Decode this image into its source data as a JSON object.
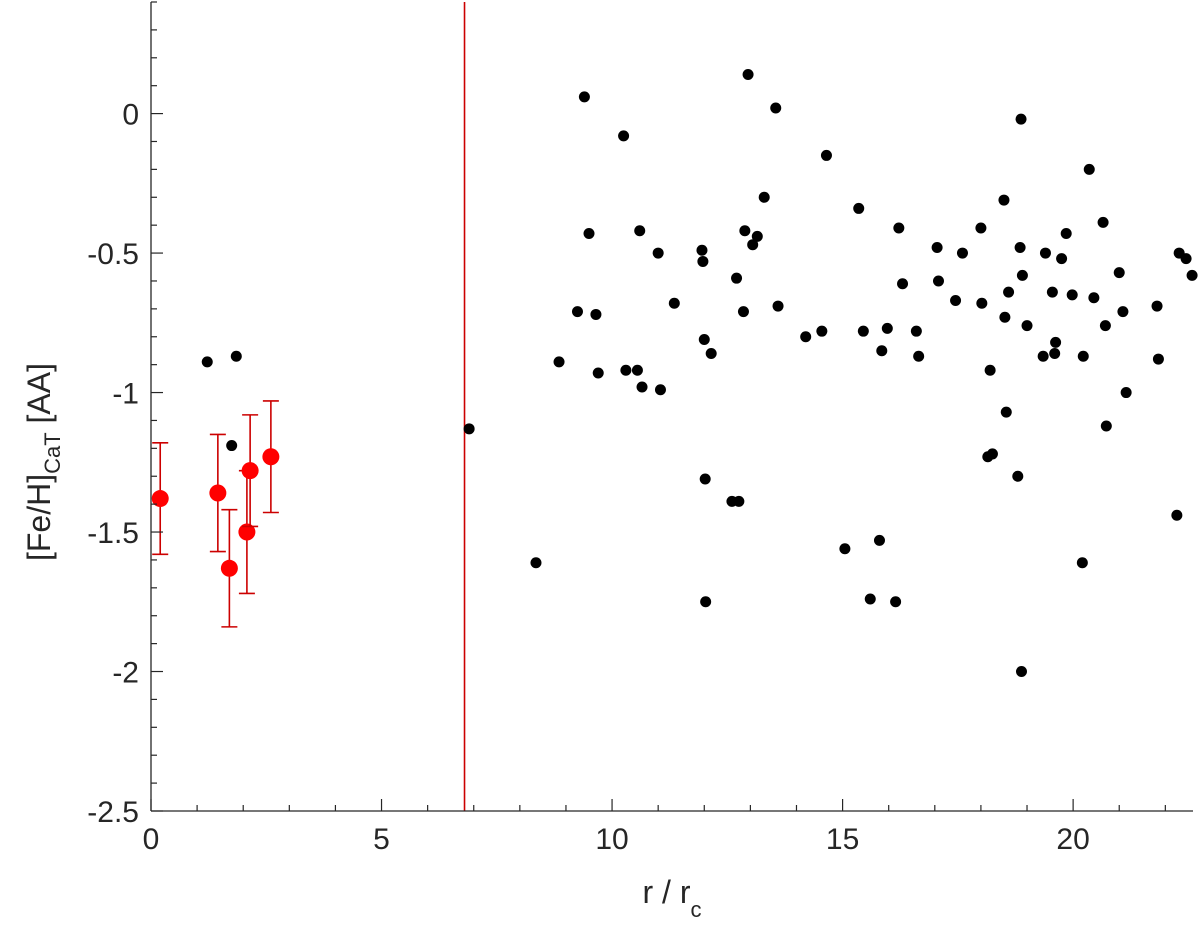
{
  "chart_data": {
    "type": "scatter",
    "xlabel": {
      "main": "r / r",
      "sub": "c"
    },
    "ylabel": {
      "main": "[Fe/H]",
      "sub": "CaT",
      "tail": " [AA]"
    },
    "xlim": [
      0,
      22.6
    ],
    "ylim": [
      -2.5,
      0.4
    ],
    "xticks": [
      0,
      5,
      10,
      15,
      20
    ],
    "xtick_labels": [
      "0",
      "5",
      "10",
      "15",
      "20"
    ],
    "yticks": [
      0,
      -0.5,
      -1,
      -1.5,
      -2,
      -2.5
    ],
    "ytick_labels": [
      "0",
      "-0.5",
      "-1",
      "-1.5",
      "-2",
      "-2.5"
    ],
    "grid": false,
    "vline": {
      "x": 6.8,
      "color": "#cc0000"
    },
    "colors": {
      "field": "#000000",
      "members": "#ff0000",
      "errorbar": "#cc0000",
      "axis": "#262626"
    },
    "series": [
      {
        "role": "field",
        "points": [
          [
            1.22,
            -0.89
          ],
          [
            1.85,
            -0.87
          ],
          [
            1.75,
            -1.19
          ],
          [
            6.9,
            -1.13
          ],
          [
            8.35,
            -1.61
          ],
          [
            8.85,
            -0.89
          ],
          [
            9.25,
            -0.71
          ],
          [
            9.4,
            0.06
          ],
          [
            9.5,
            -0.43
          ],
          [
            9.65,
            -0.72
          ],
          [
            9.7,
            -0.93
          ],
          [
            10.25,
            -0.08
          ],
          [
            10.3,
            -0.92
          ],
          [
            10.55,
            -0.92
          ],
          [
            10.6,
            -0.42
          ],
          [
            10.65,
            -0.98
          ],
          [
            11.0,
            -0.5
          ],
          [
            11.05,
            -0.99
          ],
          [
            11.35,
            -0.68
          ],
          [
            11.95,
            -0.49
          ],
          [
            11.97,
            -0.53
          ],
          [
            12.0,
            -0.81
          ],
          [
            12.02,
            -1.31
          ],
          [
            12.03,
            -1.75
          ],
          [
            12.15,
            -0.86
          ],
          [
            12.6,
            -1.39
          ],
          [
            12.7,
            -0.59
          ],
          [
            12.75,
            -1.39
          ],
          [
            12.85,
            -0.71
          ],
          [
            12.88,
            -0.42
          ],
          [
            12.95,
            0.14
          ],
          [
            13.05,
            -0.47
          ],
          [
            13.15,
            -0.44
          ],
          [
            13.3,
            -0.3
          ],
          [
            13.55,
            0.02
          ],
          [
            13.6,
            -0.69
          ],
          [
            14.2,
            -0.8
          ],
          [
            14.55,
            -0.78
          ],
          [
            14.65,
            -0.15
          ],
          [
            15.05,
            -1.56
          ],
          [
            15.35,
            -0.34
          ],
          [
            15.45,
            -0.78
          ],
          [
            15.6,
            -1.74
          ],
          [
            15.8,
            -1.53
          ],
          [
            15.85,
            -0.85
          ],
          [
            15.97,
            -0.77
          ],
          [
            16.15,
            -1.75
          ],
          [
            16.22,
            -0.41
          ],
          [
            16.3,
            -0.61
          ],
          [
            16.6,
            -0.78
          ],
          [
            16.65,
            -0.87
          ],
          [
            17.05,
            -0.48
          ],
          [
            17.08,
            -0.6
          ],
          [
            17.45,
            -0.67
          ],
          [
            17.6,
            -0.5
          ],
          [
            18.0,
            -0.41
          ],
          [
            18.02,
            -0.68
          ],
          [
            18.15,
            -1.23
          ],
          [
            18.2,
            -0.92
          ],
          [
            18.25,
            -1.22
          ],
          [
            18.5,
            -0.31
          ],
          [
            18.52,
            -0.73
          ],
          [
            18.55,
            -1.07
          ],
          [
            18.6,
            -0.64
          ],
          [
            18.8,
            -1.3
          ],
          [
            18.85,
            -0.48
          ],
          [
            18.87,
            -0.02
          ],
          [
            18.9,
            -0.58
          ],
          [
            18.88,
            -2.0
          ],
          [
            19.0,
            -0.76
          ],
          [
            19.35,
            -0.87
          ],
          [
            19.4,
            -0.5
          ],
          [
            19.55,
            -0.64
          ],
          [
            19.6,
            -0.86
          ],
          [
            19.62,
            -0.82
          ],
          [
            19.75,
            -0.52
          ],
          [
            19.85,
            -0.43
          ],
          [
            19.98,
            -0.65
          ],
          [
            20.2,
            -1.61
          ],
          [
            20.22,
            -0.87
          ],
          [
            20.35,
            -0.2
          ],
          [
            20.45,
            -0.66
          ],
          [
            20.65,
            -0.39
          ],
          [
            20.7,
            -0.76
          ],
          [
            20.72,
            -1.12
          ],
          [
            21.0,
            -0.57
          ],
          [
            21.08,
            -0.71
          ],
          [
            21.15,
            -1.0
          ],
          [
            21.82,
            -0.69
          ],
          [
            21.85,
            -0.88
          ],
          [
            22.25,
            -1.44
          ],
          [
            22.3,
            -0.5
          ],
          [
            22.45,
            -0.52
          ],
          [
            22.58,
            -0.58
          ]
        ]
      },
      {
        "role": "members",
        "points": [
          [
            0.2,
            -1.38,
            0.2
          ],
          [
            1.45,
            -1.36,
            0.21
          ],
          [
            1.7,
            -1.63,
            0.21
          ],
          [
            2.08,
            -1.5,
            0.22
          ],
          [
            2.15,
            -1.28,
            0.2
          ],
          [
            2.6,
            -1.23,
            0.2
          ]
        ]
      }
    ]
  }
}
